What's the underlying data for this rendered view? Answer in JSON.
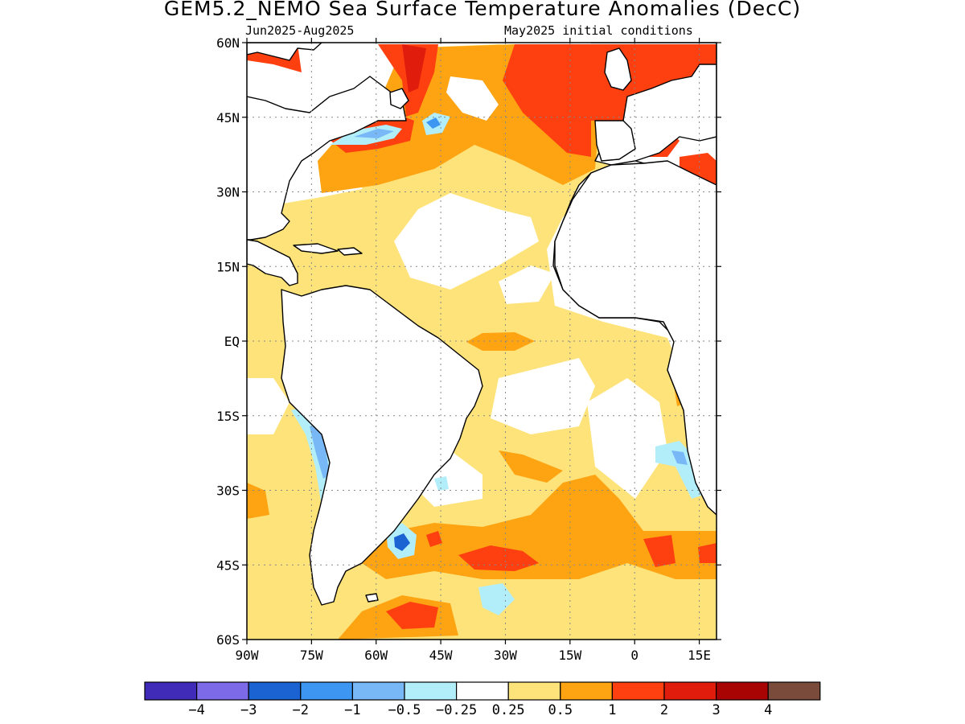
{
  "title": "GEM5.2_NEMO Sea Surface Temperature Anomalies (DecC)",
  "subtitle_left": "Jun2025-Aug2025",
  "subtitle_right": "May2025 initial conditions",
  "y_ticks": [
    "60N",
    "45N",
    "30N",
    "15N",
    "EQ",
    "15S",
    "30S",
    "45S",
    "60S"
  ],
  "x_ticks": [
    "90W",
    "75W",
    "60W",
    "45W",
    "30W",
    "15W",
    "0",
    "15E"
  ],
  "colorbar": {
    "colors": [
      "#3f2bb8",
      "#7c6ae8",
      "#1b63d3",
      "#3d96f2",
      "#78b8f7",
      "#b2eefa",
      "#ffffff",
      "#fde37a",
      "#fea312",
      "#fe4010",
      "#e01c0c",
      "#a90404",
      "#7a4b3b"
    ],
    "labels": [
      "−4",
      "−3",
      "−2",
      "−1",
      "−0.5",
      "−0.25",
      "0.25",
      "0.5",
      "1",
      "2",
      "3",
      "4"
    ]
  },
  "map_data": {
    "region": "Atlantic Ocean",
    "lon_range": [
      -90,
      19
    ],
    "lat_range": [
      -60,
      60
    ],
    "features": [
      {
        "name": "North Atlantic subpolar warm anomaly",
        "category": "1 to 2"
      },
      {
        "name": "Northeast Atlantic warm anomaly",
        "category": "1 to 2"
      },
      {
        "name": "Mediterranean warm anomaly",
        "category": "1 to 2"
      },
      {
        "name": "Gulf Stream cold anomaly",
        "category": "-1 to -0.5"
      },
      {
        "name": "Equatorial Atlantic warm patch",
        "category": "0.5 to 1"
      },
      {
        "name": "Chile coast cold anomaly",
        "category": "-1 to -0.5"
      },
      {
        "name": "Benguela coast cold anomaly",
        "category": "-1 to -0.5"
      },
      {
        "name": "Brazil-Malvinas confluence cold eddy",
        "category": "-2 to -1"
      },
      {
        "name": "South Atlantic warm band",
        "category": "1 to 2"
      }
    ]
  }
}
